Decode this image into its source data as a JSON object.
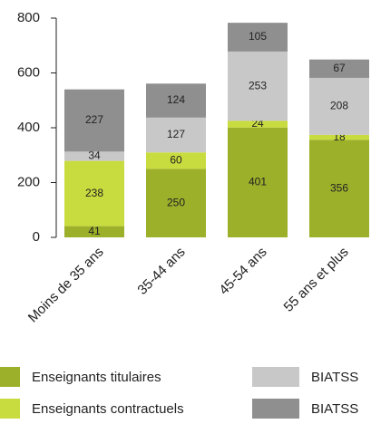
{
  "chart_data": {
    "type": "stacked_bar",
    "categories": [
      "Moins de 35 ans",
      "35-44 ans",
      "45-54 ans",
      "55 ans et plus"
    ],
    "series": [
      {
        "name": "Enseignants titulaires",
        "color": "#9cb02a",
        "values": [
          41,
          250,
          401,
          356
        ]
      },
      {
        "name": "Enseignants contractuels",
        "color": "#c9dc3f",
        "values": [
          238,
          60,
          24,
          18
        ]
      },
      {
        "name": "BIATSS",
        "color": "#c8c8c8",
        "values": [
          34,
          127,
          253,
          208
        ]
      },
      {
        "name": "BIATSS",
        "color": "#8f8f8f",
        "values": [
          227,
          124,
          105,
          67
        ]
      }
    ],
    "ylim": [
      0,
      800
    ],
    "yticks": [
      0,
      200,
      400,
      600,
      800
    ],
    "grid": false
  }
}
